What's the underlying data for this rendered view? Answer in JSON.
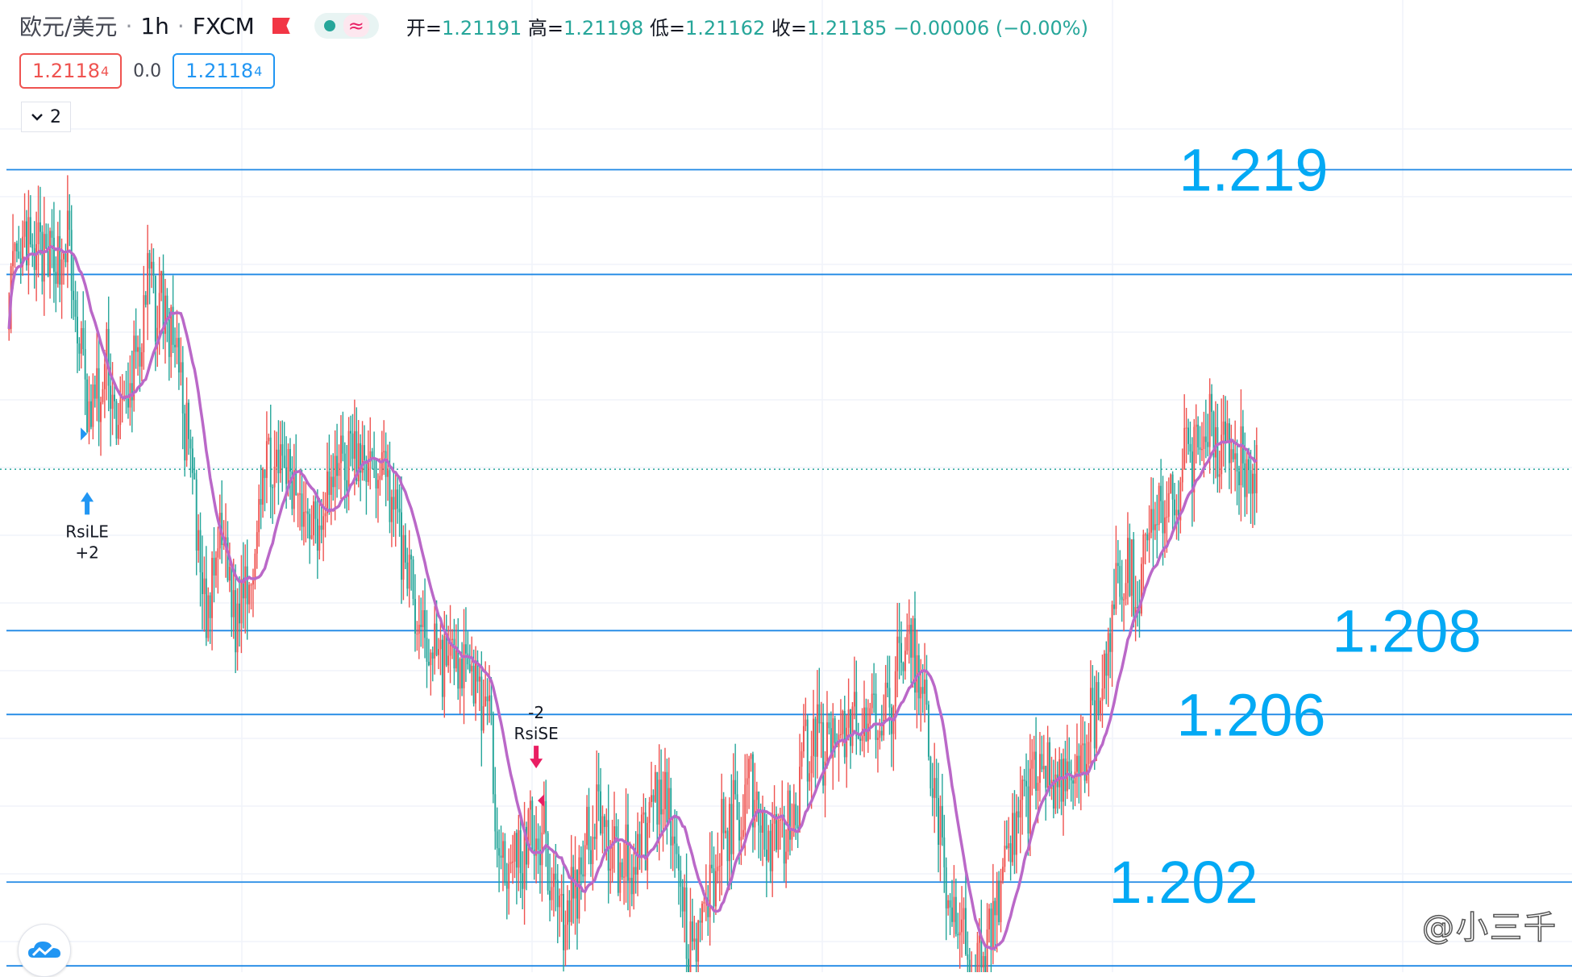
{
  "header": {
    "symbol": "欧元/美元",
    "sep": "·",
    "interval": "1h",
    "exchange": "FXCM",
    "ohlc": {
      "open_label": "开=",
      "open": "1.21191",
      "high_label": "高=",
      "high": "1.21198",
      "low_label": "低=",
      "low": "1.21162",
      "close_label": "收=",
      "close": "1.21185",
      "change": "−0.00006 (−0.00%)"
    }
  },
  "trade": {
    "sell_price": "1.2118",
    "sell_pip": "4",
    "spread": "0.0",
    "buy_price": "1.2118",
    "buy_pip": "4"
  },
  "indicator_toggle": {
    "count": "2"
  },
  "watermark": "@小三千",
  "colors": {
    "up": "#ef5350",
    "down": "#26a69a",
    "ma": "#ba68c8",
    "level": "#1e88e5",
    "level_text": "#03a9f4"
  },
  "chart_data": {
    "type": "candlestick",
    "timeframe": "1h",
    "ylim": [
      1.19985,
      1.22151
    ],
    "current_price": 1.21185,
    "levels": [
      {
        "price": 1.219,
        "label": "1.219"
      },
      {
        "price": 1.2165,
        "label": ""
      },
      {
        "price": 1.208,
        "label": "1.208"
      },
      {
        "price": 1.206,
        "label": "1.206"
      },
      {
        "price": 1.202,
        "label": "1.202"
      },
      {
        "price": 1.2,
        "label": ""
      }
    ],
    "signals": [
      {
        "type": "long_entry",
        "label": "RsiLE",
        "qty": "+2",
        "bar": 40,
        "price": 1.2115
      },
      {
        "type": "short_entry",
        "label": "RsiSE",
        "qty": "-2",
        "bar": 270,
        "price": 1.2046
      }
    ],
    "close_path": [
      [
        0,
        1.216
      ],
      [
        8,
        1.217
      ],
      [
        20,
        1.2168
      ],
      [
        30,
        1.2172
      ],
      [
        38,
        1.214
      ],
      [
        42,
        1.213
      ],
      [
        50,
        1.2142
      ],
      [
        58,
        1.2128
      ],
      [
        65,
        1.2145
      ],
      [
        72,
        1.2162
      ],
      [
        80,
        1.2155
      ],
      [
        85,
        1.215
      ],
      [
        95,
        1.211
      ],
      [
        100,
        1.2082
      ],
      [
        110,
        1.2105
      ],
      [
        115,
        1.2082
      ],
      [
        125,
        1.2098
      ],
      [
        130,
        1.212
      ],
      [
        140,
        1.2118
      ],
      [
        150,
        1.2112
      ],
      [
        155,
        1.2105
      ],
      [
        160,
        1.211
      ],
      [
        172,
        1.2123
      ],
      [
        185,
        1.2118
      ],
      [
        190,
        1.212
      ],
      [
        195,
        1.2115
      ],
      [
        210,
        1.208
      ],
      [
        228,
        1.2072
      ],
      [
        243,
        1.2065
      ],
      [
        255,
        1.202
      ],
      [
        270,
        1.2035
      ],
      [
        285,
        1.201
      ],
      [
        300,
        1.2038
      ],
      [
        310,
        1.2025
      ],
      [
        320,
        1.2025
      ],
      [
        335,
        1.2045
      ],
      [
        350,
        1.2
      ],
      [
        365,
        1.203
      ],
      [
        380,
        1.2043
      ],
      [
        390,
        1.203
      ],
      [
        400,
        1.2035
      ],
      [
        410,
        1.2055
      ],
      [
        425,
        1.205
      ],
      [
        432,
        1.206
      ],
      [
        448,
        1.2055
      ],
      [
        460,
        1.208
      ],
      [
        470,
        1.206
      ],
      [
        480,
        1.2015
      ],
      [
        487,
        1.2015
      ],
      [
        492,
        1.199
      ],
      [
        498,
        1.2
      ],
      [
        505,
        1.2015
      ],
      [
        512,
        1.203
      ],
      [
        520,
        1.204
      ],
      [
        528,
        1.2048
      ],
      [
        536,
        1.2042
      ],
      [
        542,
        1.2044
      ],
      [
        550,
        1.205
      ],
      [
        560,
        1.207
      ],
      [
        570,
        1.2095
      ],
      [
        578,
        1.209
      ],
      [
        585,
        1.2108
      ],
      [
        592,
        1.2105
      ],
      [
        600,
        1.2115
      ],
      [
        612,
        1.213
      ],
      [
        620,
        1.2125
      ],
      [
        628,
        1.212
      ],
      [
        635,
        1.2118
      ]
    ]
  }
}
